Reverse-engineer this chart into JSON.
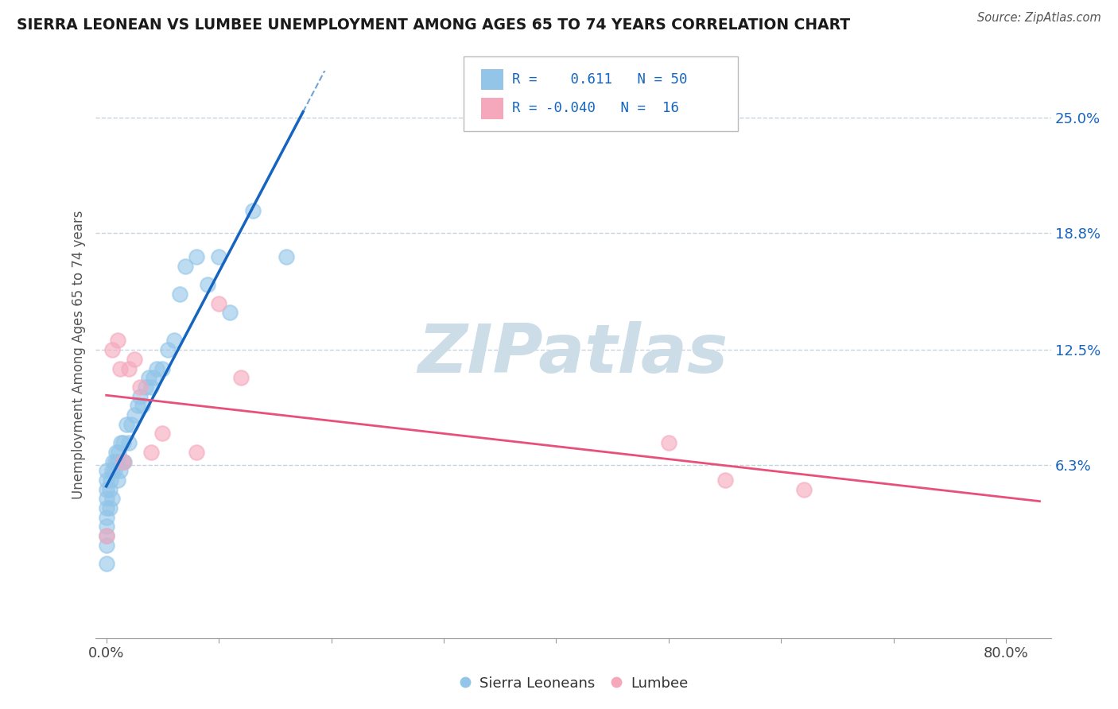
{
  "title": "SIERRA LEONEAN VS LUMBEE UNEMPLOYMENT AMONG AGES 65 TO 74 YEARS CORRELATION CHART",
  "source": "Source: ZipAtlas.com",
  "ylabel": "Unemployment Among Ages 65 to 74 years",
  "ytick_labels": [
    "6.3%",
    "12.5%",
    "18.8%",
    "25.0%"
  ],
  "ytick_values": [
    0.063,
    0.125,
    0.188,
    0.25
  ],
  "xtick_values": [
    0.0,
    0.1,
    0.2,
    0.3,
    0.4,
    0.5,
    0.6,
    0.7,
    0.8
  ],
  "xtick_labels": [
    "0.0%",
    "",
    "",
    "",
    "",
    "",
    "",
    "",
    "80.0%"
  ],
  "xlim": [
    -0.01,
    0.84
  ],
  "ylim": [
    -0.03,
    0.275
  ],
  "sierra_color": "#92c5e8",
  "lumbee_color": "#f5a8bc",
  "trend_sierra_color": "#1565c0",
  "trend_lumbee_color": "#e8507a",
  "watermark_color": "#ccdde8",
  "background_color": "#ffffff",
  "grid_color": "#c5d5e0",
  "title_color": "#1a1a1a",
  "source_color": "#555555",
  "axis_label_color": "#555555",
  "right_tick_color": "#1565c0",
  "legend_text_color": "#1565c0",
  "sierra_x": [
    0.0,
    0.0,
    0.0,
    0.0,
    0.0,
    0.0,
    0.0,
    0.0,
    0.0,
    0.0,
    0.003,
    0.003,
    0.004,
    0.005,
    0.005,
    0.006,
    0.007,
    0.008,
    0.009,
    0.01,
    0.01,
    0.011,
    0.012,
    0.013,
    0.015,
    0.015,
    0.016,
    0.018,
    0.02,
    0.022,
    0.025,
    0.028,
    0.03,
    0.032,
    0.035,
    0.038,
    0.04,
    0.042,
    0.045,
    0.05,
    0.055,
    0.06,
    0.065,
    0.07,
    0.08,
    0.09,
    0.1,
    0.11,
    0.13,
    0.16
  ],
  "sierra_y": [
    0.01,
    0.02,
    0.025,
    0.03,
    0.035,
    0.04,
    0.045,
    0.05,
    0.055,
    0.06,
    0.04,
    0.05,
    0.055,
    0.045,
    0.06,
    0.065,
    0.06,
    0.065,
    0.07,
    0.055,
    0.065,
    0.07,
    0.06,
    0.075,
    0.065,
    0.075,
    0.065,
    0.085,
    0.075,
    0.085,
    0.09,
    0.095,
    0.1,
    0.095,
    0.105,
    0.11,
    0.105,
    0.11,
    0.115,
    0.115,
    0.125,
    0.13,
    0.155,
    0.17,
    0.175,
    0.16,
    0.175,
    0.145,
    0.2,
    0.175
  ],
  "lumbee_x": [
    0.0,
    0.005,
    0.01,
    0.012,
    0.015,
    0.02,
    0.025,
    0.03,
    0.04,
    0.05,
    0.08,
    0.1,
    0.12,
    0.5,
    0.55,
    0.62
  ],
  "lumbee_y": [
    0.025,
    0.125,
    0.13,
    0.115,
    0.065,
    0.115,
    0.12,
    0.105,
    0.07,
    0.08,
    0.07,
    0.15,
    0.11,
    0.075,
    0.055,
    0.05
  ],
  "sierra_trend_x0": 0.0,
  "sierra_trend_x1": 0.175,
  "lumbee_trend_x0": 0.0,
  "lumbee_trend_x1": 0.83
}
